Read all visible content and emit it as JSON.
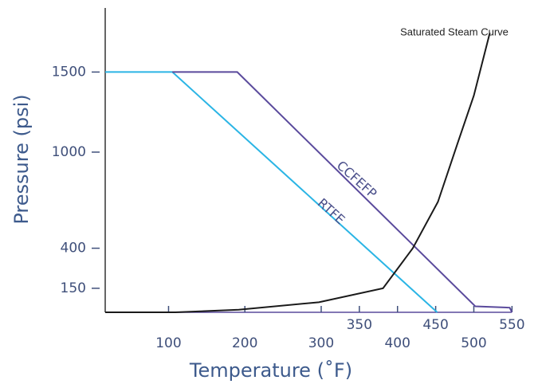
{
  "chart_data": {
    "type": "line",
    "xlabel": "Temperature  (˚F)",
    "ylabel": "Pressure (psi)",
    "xlim": [
      17,
      570
    ],
    "ylim": [
      0,
      1900
    ],
    "xticks": [
      100,
      200,
      300,
      350,
      400,
      450,
      500,
      550
    ],
    "yticks": [
      150,
      400,
      1000,
      1500
    ],
    "series": [
      {
        "name": "RTFE",
        "color": "#2bb5e5",
        "x": [
          17,
          105,
          452
        ],
        "values": [
          1500,
          1500,
          0
        ]
      },
      {
        "name": "CCFEFP",
        "color": "#5a4a9c",
        "x": [
          105,
          190,
          502,
          547,
          550
        ],
        "values": [
          1500,
          1500,
          37,
          29,
          0
        ]
      },
      {
        "name": "Saturated Steam Curve",
        "color": "#1a1a1a",
        "x": [
          17,
          109,
          192,
          297,
          381,
          420,
          453,
          479,
          500,
          521
        ],
        "values": [
          0,
          0,
          16,
          63,
          150,
          400,
          690,
          1059,
          1353,
          1745
        ]
      }
    ]
  }
}
